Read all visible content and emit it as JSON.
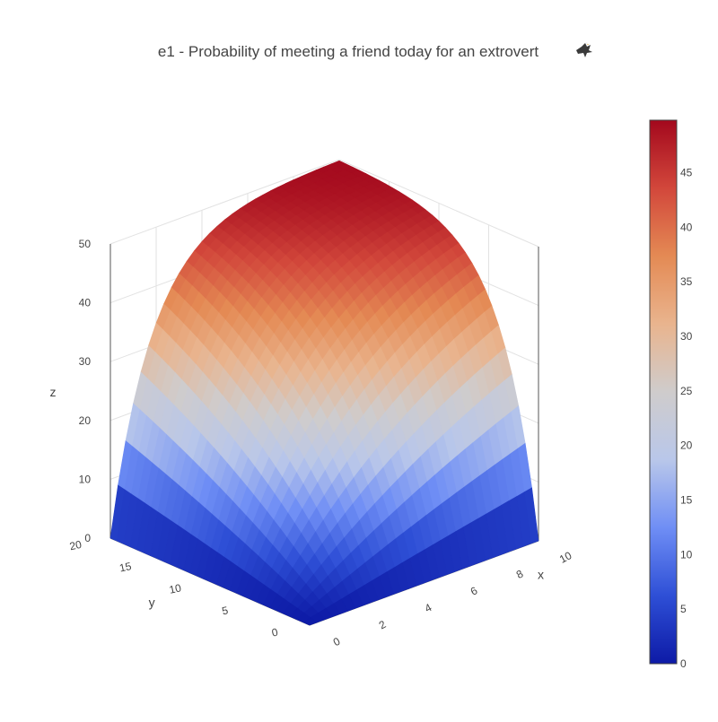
{
  "chart_data": {
    "type": "surface",
    "title": "e1 - Probability of meeting a friend today for an extrovert",
    "title_icon": "eagle-icon",
    "xlabel": "x",
    "ylabel": "y",
    "zlabel": "z",
    "x_range": [
      0,
      10
    ],
    "y_range": [
      0,
      20
    ],
    "z_range": [
      0,
      50
    ],
    "x_ticks": [
      0,
      2,
      4,
      6,
      8,
      10
    ],
    "y_ticks": [
      0,
      5,
      10,
      15,
      20
    ],
    "z_ticks": [
      0,
      10,
      20,
      30,
      40,
      50
    ],
    "colorscale": "coolwarm",
    "colorscale_stops": [
      "#0d1aa6",
      "#2e4fd6",
      "#6f8ef5",
      "#b9c7ea",
      "#cfcccc",
      "#e9b48e",
      "#e48a54",
      "#d2473b",
      "#a3081d"
    ],
    "colorbar": {
      "range": [
        0,
        50
      ],
      "ticks": [
        0,
        5,
        10,
        15,
        20,
        25,
        30,
        35,
        40,
        45
      ]
    },
    "grid": true,
    "x": [
      0,
      1,
      2,
      3,
      4,
      5,
      6,
      7,
      8,
      9,
      10
    ],
    "y": [
      0,
      2,
      4,
      6,
      8,
      10,
      12,
      14,
      16,
      18,
      20
    ],
    "surface_description": "z = 50 * (1 - exp(-0.3*x*y)) approximation; z=0 at x=0 or y=0, rising to ~50 at high x,y"
  }
}
